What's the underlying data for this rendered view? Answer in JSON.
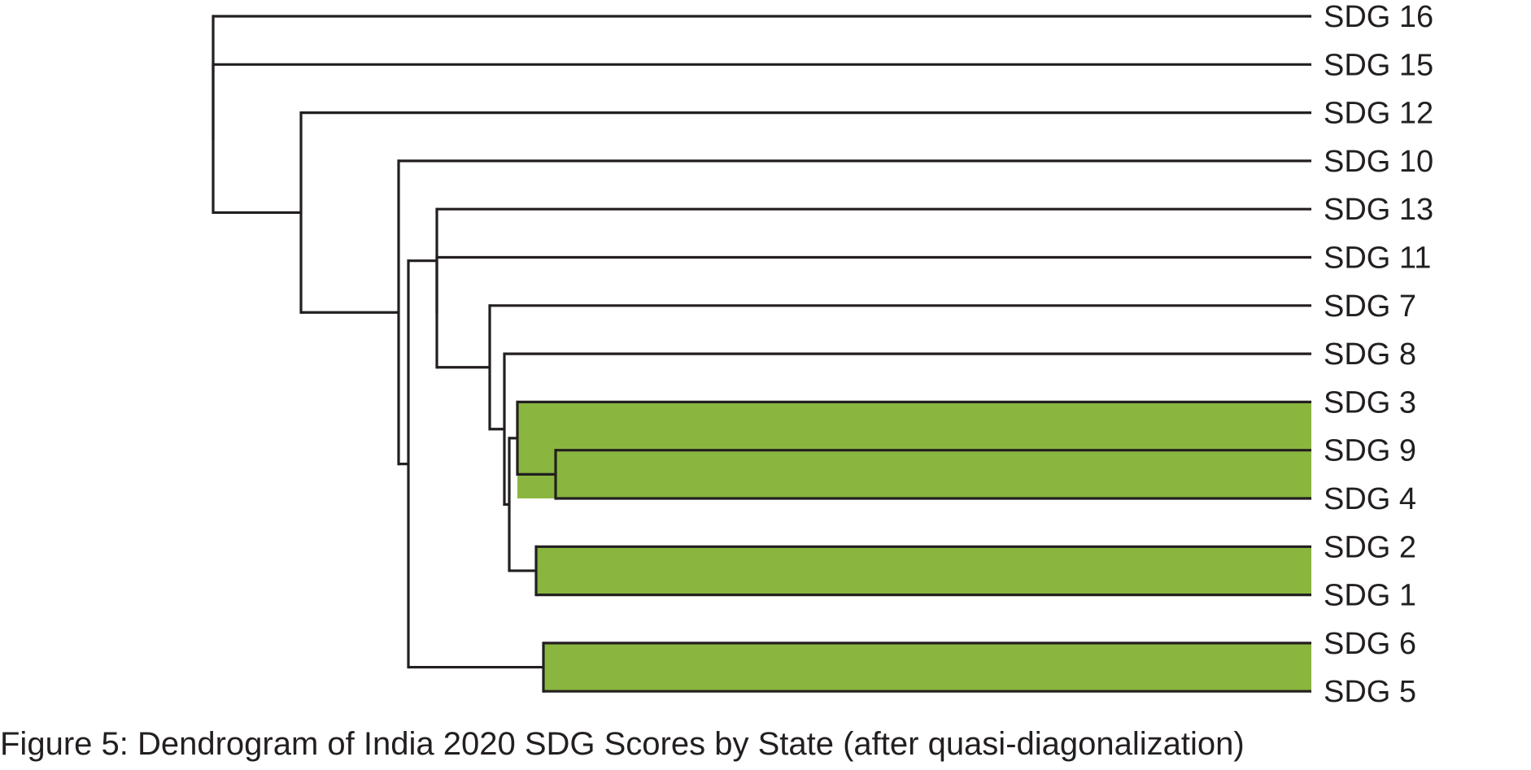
{
  "figure": {
    "caption": "Figure 5: Dendrogram of India 2020 SDG Scores by State (after quasi-diagonalization)"
  },
  "dendrogram": {
    "leaves": [
      "SDG 16",
      "SDG 15",
      "SDG 12",
      "SDG 10",
      "SDG 13",
      "SDG 11",
      "SDG 7",
      "SDG 8",
      "SDG 3",
      "SDG 9",
      "SDG 4",
      "SDG 2",
      "SDG 1",
      "SDG 6",
      "SDG 5"
    ],
    "highlight_color": "#8ab640",
    "line_color": "#231f20",
    "highlighted_clusters": [
      [
        "SDG 3",
        "SDG 9",
        "SDG 4"
      ],
      [
        "SDG 2",
        "SDG 1"
      ],
      [
        "SDG 6",
        "SDG 5"
      ]
    ]
  }
}
